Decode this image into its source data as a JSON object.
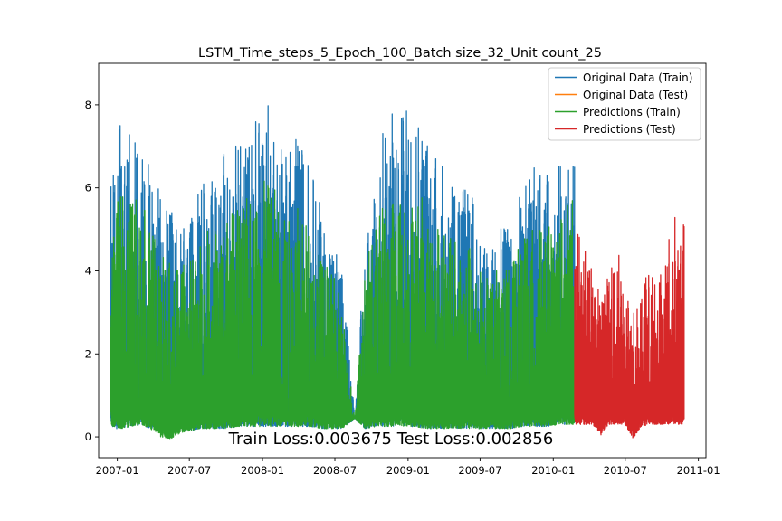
{
  "chart_data": {
    "type": "line",
    "title": "LSTM_Time_steps_5_Epoch_100_Batch size_32_Unit count_25",
    "xlabel": "",
    "ylabel": "",
    "xlim": [
      "2006-11-15",
      "2011-01-20"
    ],
    "ylim": [
      -0.5,
      9.0
    ],
    "x_ticks": [
      "2007-01",
      "2007-07",
      "2008-01",
      "2008-07",
      "2009-01",
      "2009-07",
      "2010-01",
      "2010-07",
      "2011-01"
    ],
    "y_ticks": [
      0,
      2,
      4,
      6,
      8
    ],
    "grid": false,
    "legend_placement": "top-right",
    "annotation": "Train Loss:0.003675 Test Loss:0.002856",
    "series": [
      {
        "name": "Original Data (Train)",
        "color": "#1f77b4",
        "x_range": [
          "2006-12-16",
          "2010-02-24"
        ],
        "x": [
          "2006-12-20",
          "2007-01-10",
          "2007-02-05",
          "2007-03-01",
          "2007-03-25",
          "2007-04-20",
          "2007-05-15",
          "2007-06-10",
          "2007-07-05",
          "2007-08-01",
          "2007-09-01",
          "2007-10-01",
          "2007-11-01",
          "2007-12-01",
          "2008-01-01",
          "2008-02-01",
          "2008-03-01",
          "2008-04-01",
          "2008-05-01",
          "2008-06-01",
          "2008-07-01",
          "2008-07-20",
          "2008-08-20",
          "2008-09-15",
          "2008-10-15",
          "2008-11-15",
          "2008-12-15",
          "2009-01-15",
          "2009-02-15",
          "2009-03-15",
          "2009-04-15",
          "2009-05-15",
          "2009-06-15",
          "2009-07-15",
          "2009-08-15",
          "2009-09-15",
          "2009-10-15",
          "2009-11-15",
          "2009-12-15",
          "2010-01-15",
          "2010-02-15"
        ],
        "upper": [
          6.6,
          7.8,
          7.2,
          8.2,
          6.4,
          5.9,
          5.5,
          5.0,
          5.2,
          6.2,
          6.5,
          6.9,
          7.2,
          7.4,
          8.3,
          7.9,
          6.9,
          7.3,
          6.6,
          5.4,
          4.7,
          4.0,
          0.5,
          4.8,
          6.9,
          8.1,
          7.8,
          8.4,
          7.6,
          6.9,
          6.1,
          6.3,
          5.8,
          4.6,
          5.0,
          5.1,
          6.1,
          6.5,
          6.3,
          6.7,
          6.6
        ],
        "lower": [
          0.2,
          0.2,
          0.25,
          0.3,
          0.2,
          0.2,
          0.2,
          0.15,
          0.15,
          0.2,
          0.2,
          0.2,
          0.25,
          0.25,
          0.25,
          0.25,
          0.25,
          0.25,
          0.25,
          0.2,
          0.2,
          0.2,
          0.45,
          0.2,
          0.25,
          0.25,
          0.25,
          0.25,
          0.2,
          0.2,
          0.2,
          0.2,
          0.2,
          0.2,
          0.2,
          0.2,
          0.25,
          0.25,
          0.25,
          0.3,
          0.3
        ]
      },
      {
        "name": "Original Data (Test)",
        "color": "#ff7f0e",
        "x_range": [
          "2010-02-24",
          "2010-11-26"
        ]
      },
      {
        "name": "Predictions (Train)",
        "color": "#2ca02c",
        "x_range": [
          "2006-12-16",
          "2010-02-24"
        ],
        "x": [
          "2006-12-20",
          "2007-01-10",
          "2007-02-05",
          "2007-03-01",
          "2007-03-25",
          "2007-04-20",
          "2007-05-15",
          "2007-06-10",
          "2007-07-05",
          "2007-08-01",
          "2007-09-01",
          "2007-10-01",
          "2007-11-01",
          "2007-12-01",
          "2008-01-01",
          "2008-02-01",
          "2008-03-01",
          "2008-04-01",
          "2008-05-01",
          "2008-06-01",
          "2008-07-01",
          "2008-07-20",
          "2008-08-20",
          "2008-09-15",
          "2008-10-15",
          "2008-11-15",
          "2008-12-15",
          "2009-01-15",
          "2009-02-15",
          "2009-03-15",
          "2009-04-15",
          "2009-05-15",
          "2009-06-15",
          "2009-07-15",
          "2009-08-15",
          "2009-09-15",
          "2009-10-15",
          "2009-11-15",
          "2009-12-15",
          "2010-01-15",
          "2010-02-15"
        ],
        "upper": [
          5.2,
          6.0,
          5.8,
          5.9,
          5.0,
          4.6,
          4.4,
          4.1,
          4.3,
          4.9,
          5.1,
          5.4,
          5.6,
          5.8,
          6.2,
          6.0,
          5.3,
          5.6,
          5.1,
          4.3,
          3.8,
          3.2,
          0.45,
          4.0,
          5.4,
          5.9,
          5.8,
          6.0,
          5.7,
          5.2,
          4.8,
          4.9,
          4.5,
          3.8,
          4.1,
          4.1,
          4.8,
          5.1,
          5.0,
          5.4,
          5.8
        ],
        "lower": [
          0.25,
          0.2,
          0.25,
          0.3,
          0.2,
          0.0,
          -0.05,
          0.1,
          0.15,
          0.2,
          0.2,
          0.2,
          0.25,
          0.25,
          0.25,
          0.25,
          0.25,
          0.25,
          0.25,
          0.2,
          0.2,
          0.2,
          0.45,
          0.2,
          0.25,
          0.25,
          0.25,
          0.25,
          0.2,
          0.2,
          0.2,
          0.2,
          0.2,
          0.2,
          0.2,
          0.2,
          0.25,
          0.25,
          0.25,
          0.3,
          0.3
        ]
      },
      {
        "name": "Predictions (Test)",
        "color": "#d62728",
        "x_range": [
          "2010-02-24",
          "2010-11-26"
        ],
        "x": [
          "2010-03-01",
          "2010-03-20",
          "2010-04-10",
          "2010-05-01",
          "2010-05-20",
          "2010-06-10",
          "2010-07-01",
          "2010-07-20",
          "2010-08-10",
          "2010-09-01",
          "2010-09-20",
          "2010-10-10",
          "2010-11-01",
          "2010-11-20"
        ],
        "upper": [
          5.0,
          4.6,
          4.0,
          3.6,
          3.9,
          4.7,
          3.5,
          2.9,
          3.8,
          4.2,
          3.6,
          4.4,
          5.3,
          5.2
        ],
        "lower": [
          0.3,
          0.3,
          0.3,
          0.05,
          0.3,
          0.3,
          0.3,
          -0.05,
          0.25,
          0.3,
          0.3,
          0.3,
          0.3,
          0.3
        ]
      }
    ]
  }
}
